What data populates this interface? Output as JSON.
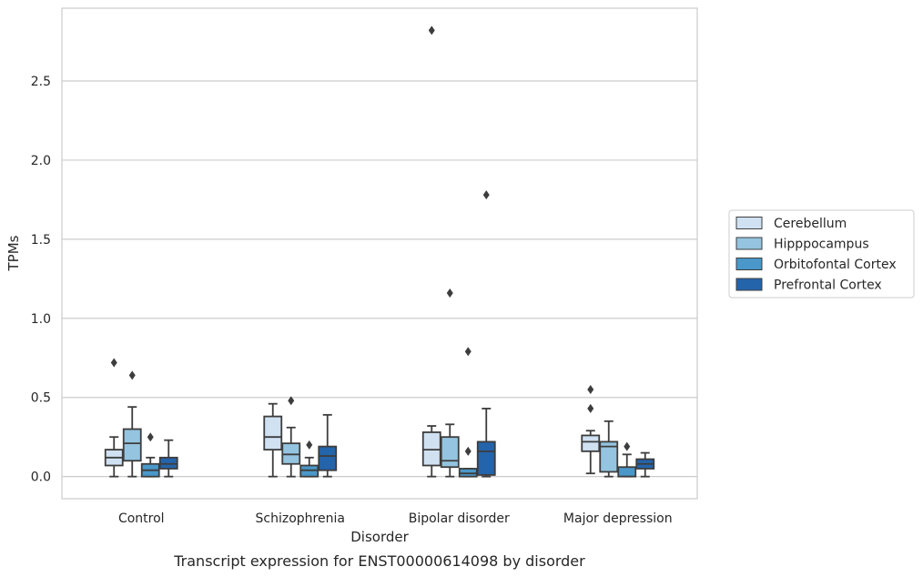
{
  "caption": "Transcript expression for ENST00000614098 by disorder",
  "chart_data": {
    "type": "box",
    "title": "",
    "xlabel": "Disorder",
    "ylabel": "TPMs",
    "ylim": [
      -0.14,
      2.96
    ],
    "yticks": [
      0.0,
      0.5,
      1.0,
      1.5,
      2.0,
      2.5
    ],
    "ytick_labels": [
      "0.0",
      "0.5",
      "1.0",
      "1.5",
      "2.0",
      "2.5"
    ],
    "grid": "horizontal",
    "legend_position": "right",
    "categories": [
      "Control",
      "Schizophrenia",
      "Bipolar disorder",
      "Major depression"
    ],
    "series": [
      {
        "name": "Cerebellum",
        "color": "#d0e1f2",
        "boxes": [
          {
            "whislo": 0.0,
            "q1": 0.07,
            "med": 0.12,
            "q3": 0.17,
            "whishi": 0.25,
            "fliers": [
              0.72
            ]
          },
          {
            "whislo": 0.0,
            "q1": 0.17,
            "med": 0.25,
            "q3": 0.38,
            "whishi": 0.46,
            "fliers": []
          },
          {
            "whislo": 0.0,
            "q1": 0.07,
            "med": 0.17,
            "q3": 0.28,
            "whishi": 0.32,
            "fliers": [
              2.82
            ]
          },
          {
            "whislo": 0.02,
            "q1": 0.16,
            "med": 0.22,
            "q3": 0.26,
            "whishi": 0.29,
            "fliers": [
              0.55,
              0.43
            ]
          }
        ]
      },
      {
        "name": "Hipppocampus",
        "color": "#94c4df",
        "boxes": [
          {
            "whislo": 0.0,
            "q1": 0.1,
            "med": 0.21,
            "q3": 0.3,
            "whishi": 0.44,
            "fliers": [
              0.64
            ]
          },
          {
            "whislo": 0.0,
            "q1": 0.08,
            "med": 0.14,
            "q3": 0.21,
            "whishi": 0.31,
            "fliers": [
              0.48
            ]
          },
          {
            "whislo": 0.0,
            "q1": 0.06,
            "med": 0.1,
            "q3": 0.25,
            "whishi": 0.33,
            "fliers": [
              1.16
            ]
          },
          {
            "whislo": 0.0,
            "q1": 0.03,
            "med": 0.19,
            "q3": 0.22,
            "whishi": 0.35,
            "fliers": []
          }
        ]
      },
      {
        "name": "Orbitofontal Cortex",
        "color": "#4a98c9",
        "boxes": [
          {
            "whislo": 0.0,
            "q1": 0.0,
            "med": 0.04,
            "q3": 0.08,
            "whishi": 0.12,
            "fliers": [
              0.25
            ]
          },
          {
            "whislo": 0.0,
            "q1": 0.0,
            "med": 0.04,
            "q3": 0.07,
            "whishi": 0.12,
            "fliers": [
              0.2
            ]
          },
          {
            "whislo": 0.0,
            "q1": 0.0,
            "med": 0.02,
            "q3": 0.05,
            "whishi": 0.05,
            "fliers": [
              0.16,
              0.79
            ]
          },
          {
            "whislo": 0.0,
            "q1": 0.0,
            "med": 0.0,
            "q3": 0.06,
            "whishi": 0.14,
            "fliers": [
              0.19
            ]
          }
        ]
      },
      {
        "name": "Prefrontal Cortex",
        "color": "#2464ab",
        "boxes": [
          {
            "whislo": 0.0,
            "q1": 0.05,
            "med": 0.08,
            "q3": 0.12,
            "whishi": 0.23,
            "fliers": []
          },
          {
            "whislo": 0.0,
            "q1": 0.04,
            "med": 0.13,
            "q3": 0.19,
            "whishi": 0.39,
            "fliers": []
          },
          {
            "whislo": 0.0,
            "q1": 0.01,
            "med": 0.16,
            "q3": 0.22,
            "whishi": 0.43,
            "fliers": [
              1.78
            ]
          },
          {
            "whislo": 0.0,
            "q1": 0.05,
            "med": 0.08,
            "q3": 0.11,
            "whishi": 0.15,
            "fliers": []
          }
        ]
      }
    ]
  }
}
